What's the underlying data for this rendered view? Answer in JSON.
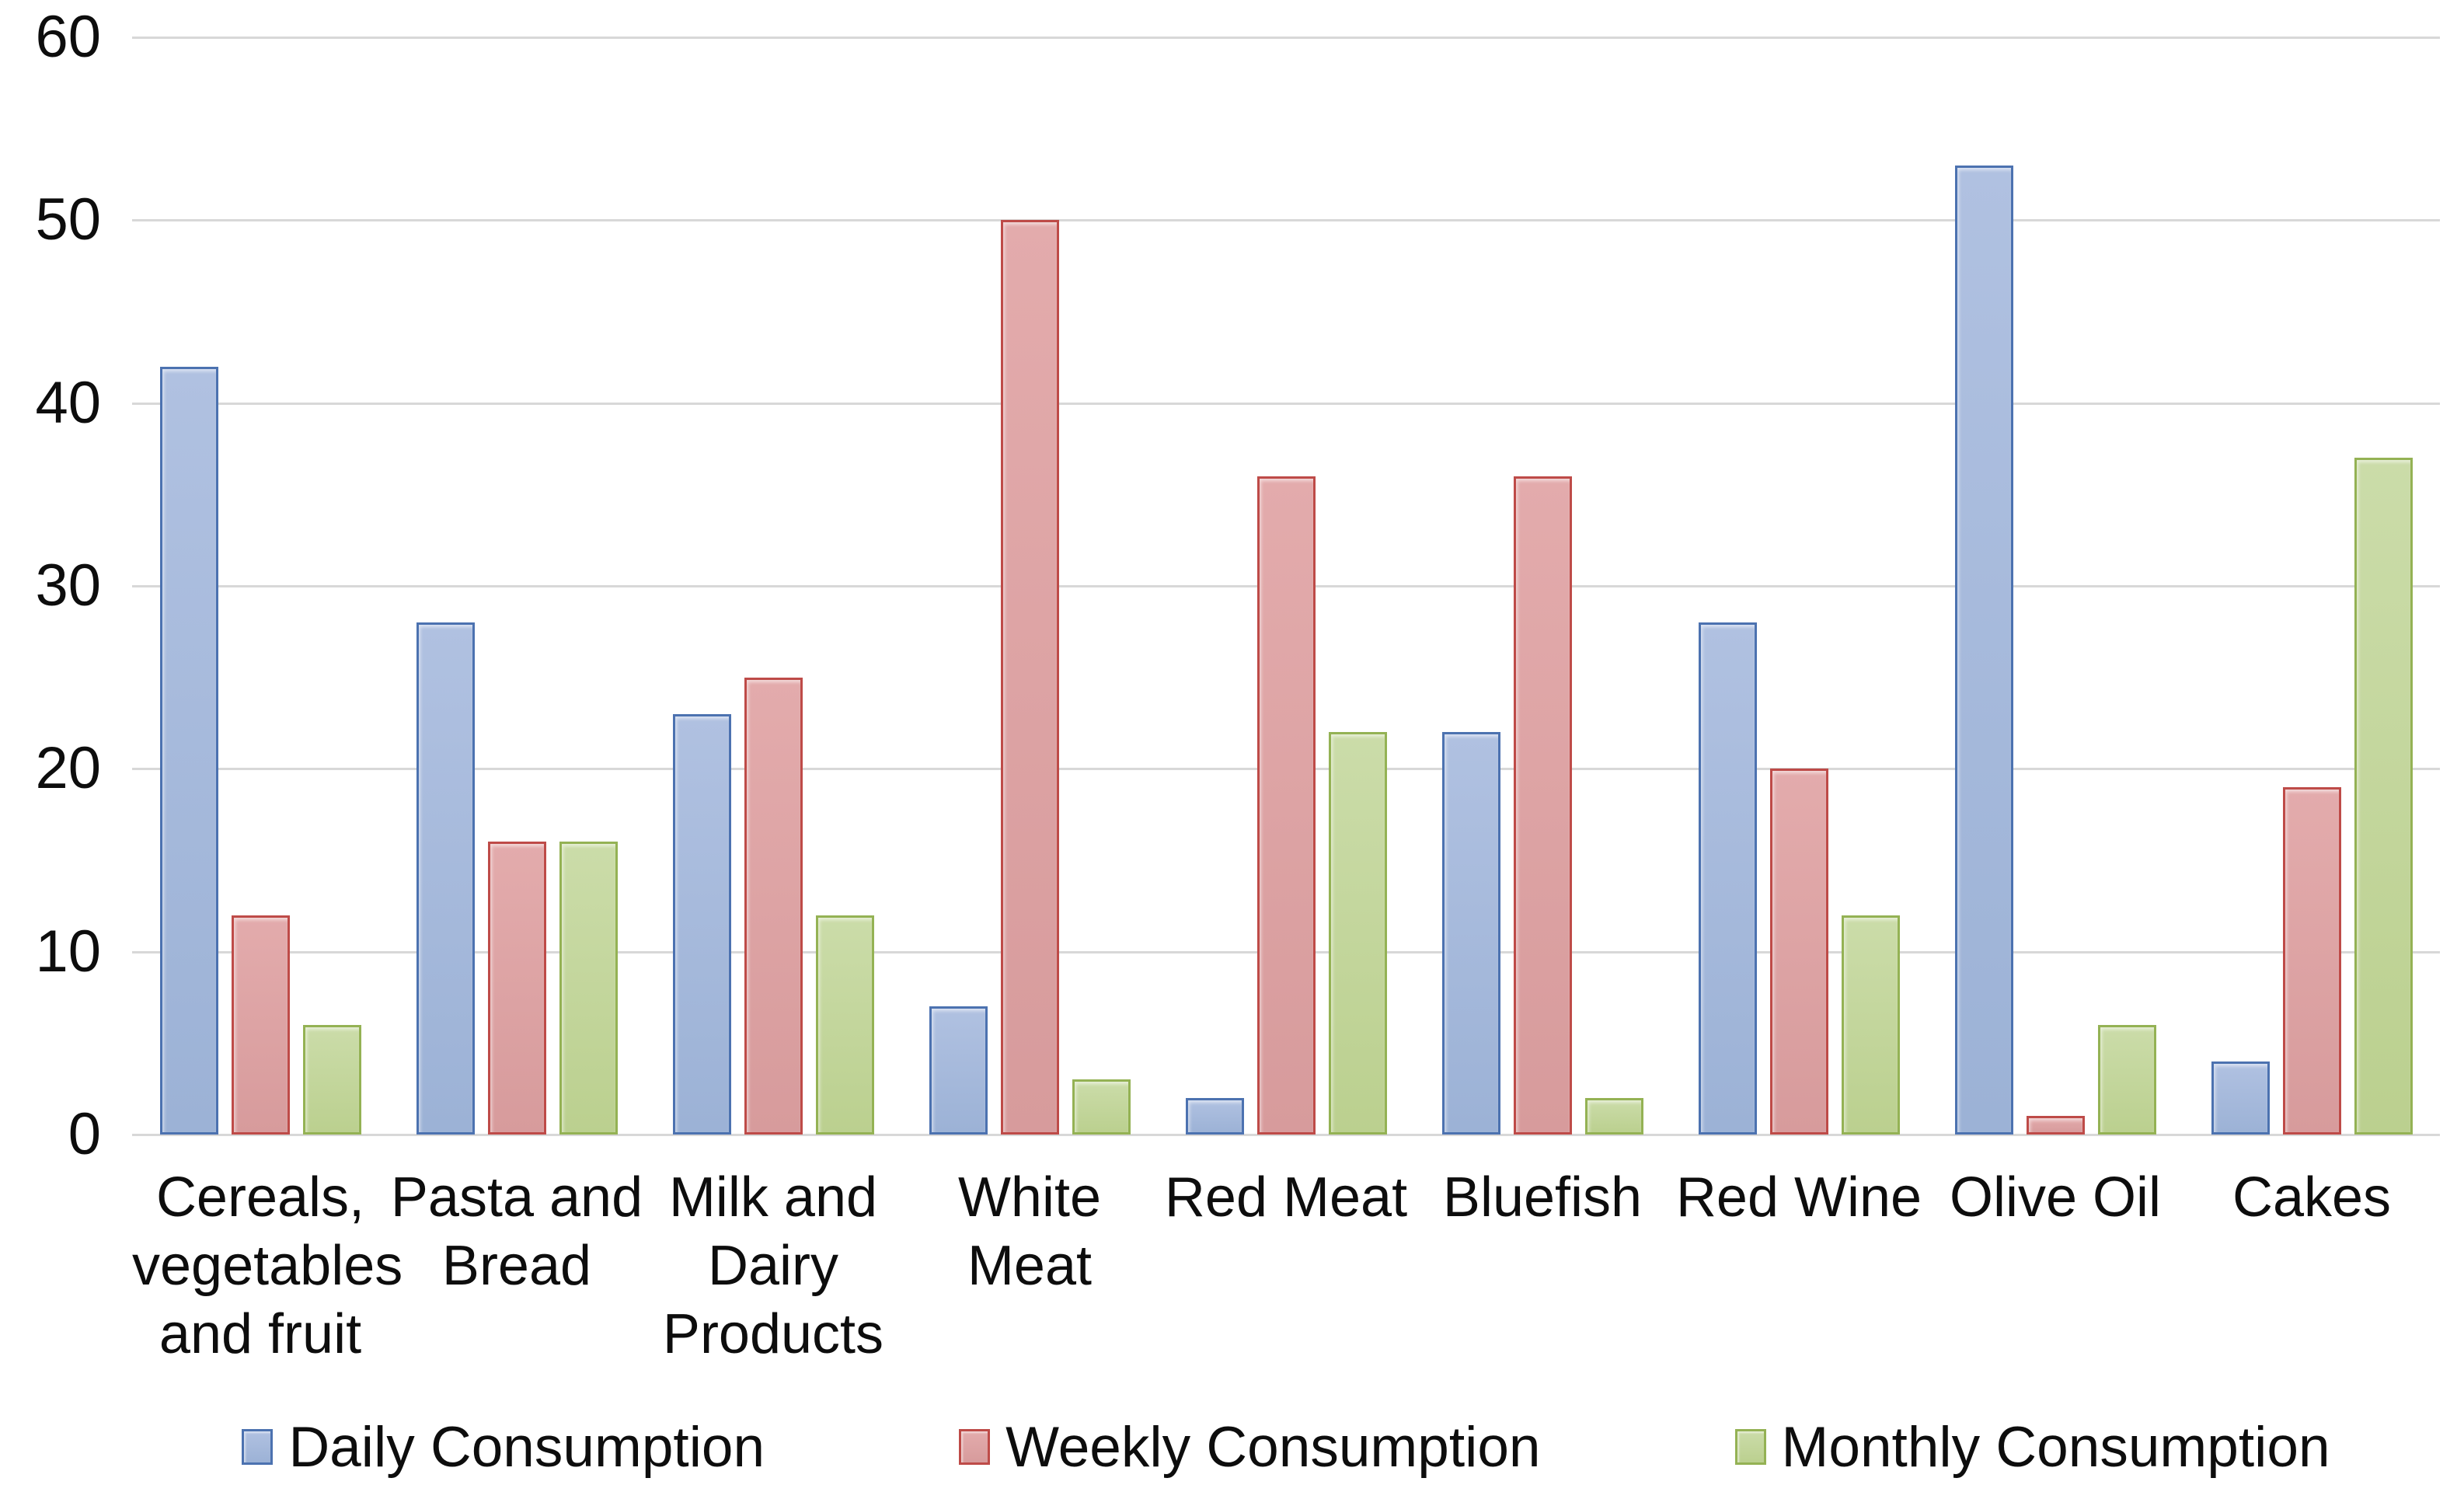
{
  "chart_data": {
    "type": "bar",
    "title": "",
    "xlabel": "",
    "ylabel": "",
    "categories": [
      "Cereals, vegetables and fruit",
      "Pasta and Bread",
      "Milk and Dairy Products",
      "White Meat",
      "Red Meat",
      "Bluefish",
      "Red Wine",
      "Olive Oil",
      "Cakes"
    ],
    "category_label_lines": [
      [
        "Cereals,",
        "vegetables",
        "and fruit"
      ],
      [
        "Pasta and",
        "Bread"
      ],
      [
        "Milk and",
        "Dairy",
        "Products"
      ],
      [
        "White",
        "Meat"
      ],
      [
        "Red Meat"
      ],
      [
        "Bluefish"
      ],
      [
        "Red Wine"
      ],
      [
        "Olive Oil"
      ],
      [
        "Cakes"
      ]
    ],
    "series": [
      {
        "name": "Daily Consumption",
        "values": [
          42,
          28,
          23,
          7,
          2,
          22,
          28,
          53,
          4
        ],
        "fill_top": "#b0c1e1",
        "fill_bottom": "#9cb2d6",
        "border": "#4c72b0"
      },
      {
        "name": "Weekly Consumption",
        "values": [
          12,
          16,
          25,
          50,
          36,
          36,
          20,
          1,
          19
        ],
        "fill_top": "#e3abac",
        "fill_bottom": "#d79b9c",
        "border": "#be4b48"
      },
      {
        "name": "Monthly Consumption",
        "values": [
          6,
          16,
          12,
          3,
          22,
          2,
          12,
          6,
          37
        ],
        "fill_top": "#cbdca9",
        "fill_bottom": "#bbd08f",
        "border": "#94b254"
      }
    ],
    "ylim": [
      0,
      60
    ],
    "yticks": [
      0,
      10,
      20,
      30,
      40,
      50,
      60
    ],
    "grid": true,
    "gridline_color": "#d8d8d8",
    "legend_position": "bottom",
    "background_color": "#ffffff"
  }
}
